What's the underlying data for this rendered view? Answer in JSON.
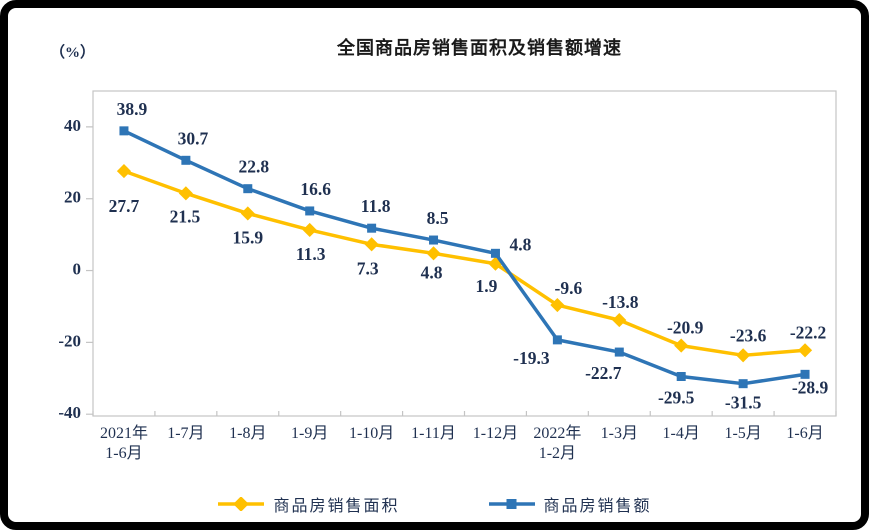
{
  "chart_data": {
    "type": "line",
    "title": "全国商品房销售面积及销售额增速",
    "unit": "（%）",
    "categories": [
      "2021年\n1-6月",
      "1-7月",
      "1-8月",
      "1-9月",
      "1-10月",
      "1-11月",
      "1-12月",
      "2022年\n1-2月",
      "1-3月",
      "1-4月",
      "1-5月",
      "1-6月"
    ],
    "series": [
      {
        "name": "商品房销售面积",
        "marker": "diamond",
        "color": "#FFC000",
        "values": [
          27.7,
          21.5,
          15.9,
          11.3,
          7.3,
          4.8,
          1.9,
          -9.6,
          -13.8,
          -20.9,
          -23.6,
          -22.2
        ]
      },
      {
        "name": "商品房销售额",
        "marker": "square",
        "color": "#2E75B6",
        "values": [
          38.9,
          30.7,
          22.8,
          16.6,
          11.8,
          8.5,
          4.8,
          -19.3,
          -22.7,
          -29.5,
          -31.5,
          -28.9
        ]
      }
    ],
    "yticks": [
      40,
      20,
      0,
      -20,
      -40
    ],
    "ylim": [
      -40.5,
      50
    ],
    "grid": false,
    "legend_position": "bottom",
    "text_color": "#1f3050",
    "axis_color": "#c4c4c4"
  }
}
